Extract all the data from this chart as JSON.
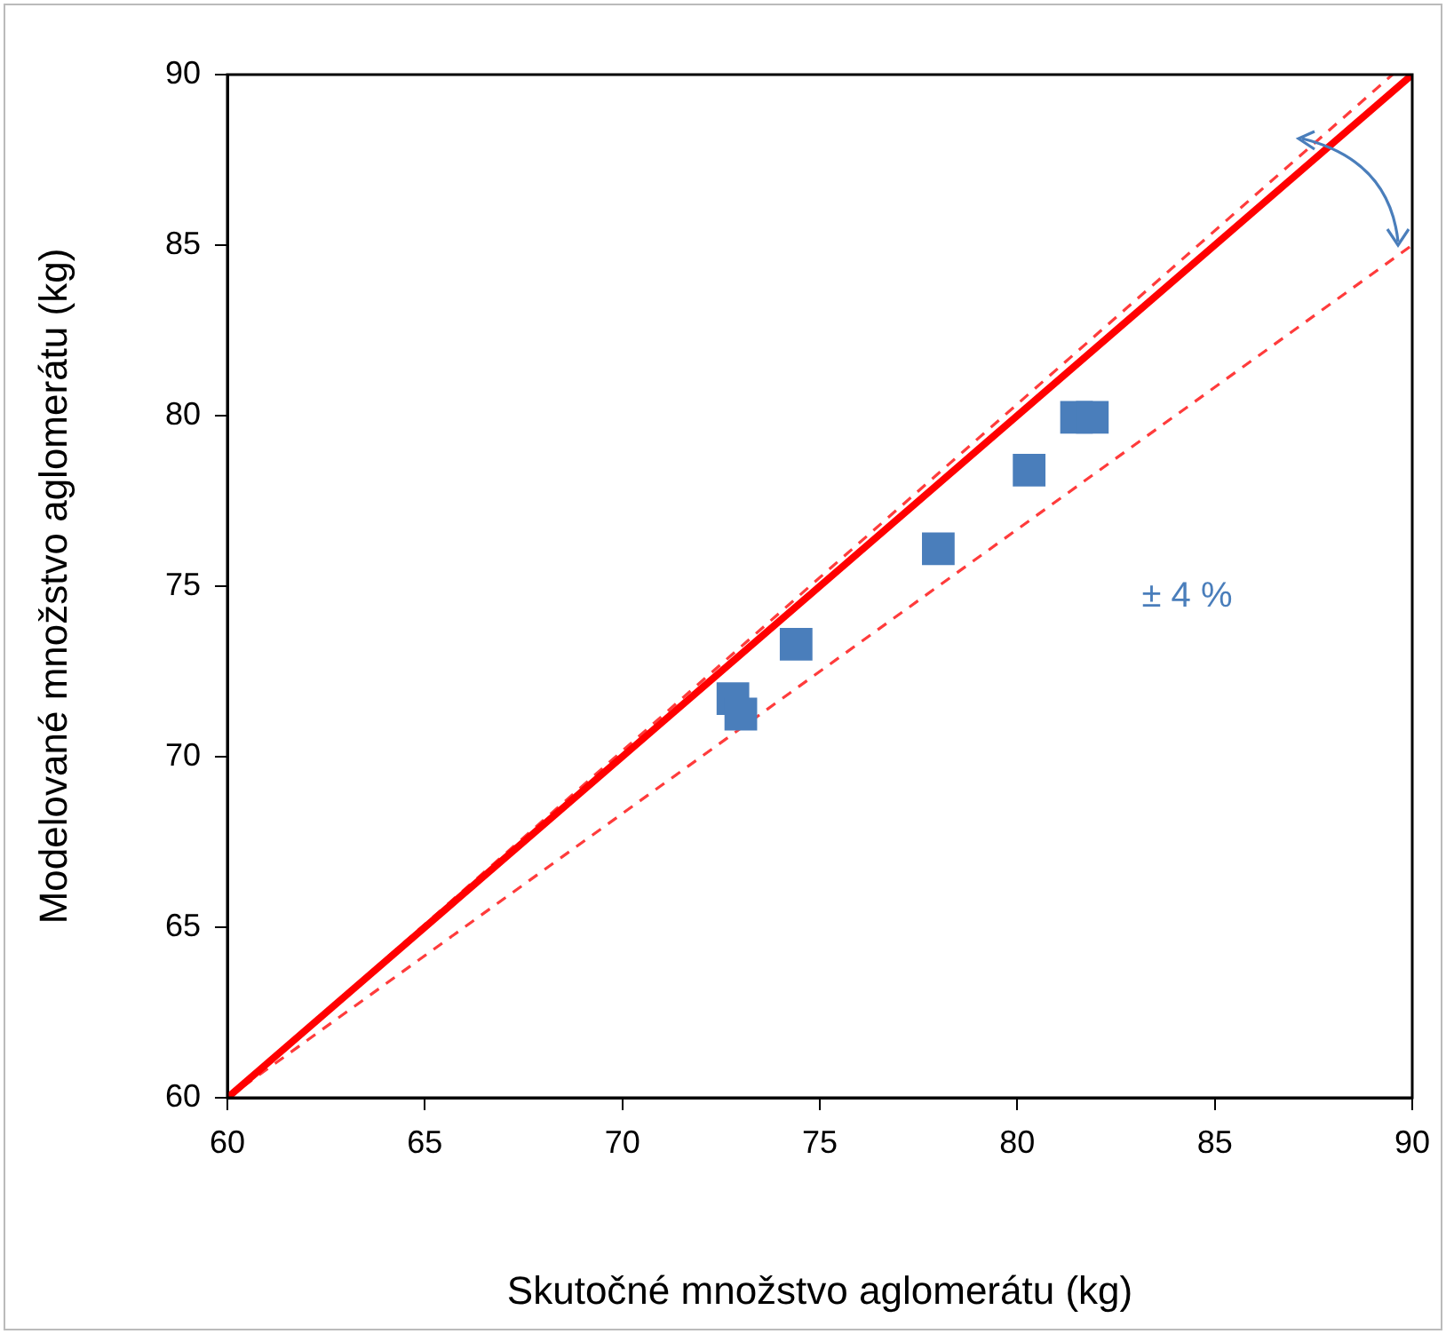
{
  "chart_data": {
    "type": "scatter",
    "xlabel": "Skutočné množstvo aglomerátu (kg)",
    "ylabel": "Modelované množstvo aglomerátu (kg)",
    "xlim": [
      60,
      90
    ],
    "ylim": [
      60,
      90
    ],
    "xticks": [
      60,
      65,
      70,
      75,
      80,
      85,
      90
    ],
    "yticks": [
      60,
      65,
      70,
      75,
      80,
      85,
      90
    ],
    "grid": false,
    "legend": false,
    "marker": "square",
    "series": [
      {
        "color": "#4a7ebb",
        "x": [
          72.8,
          73.0,
          74.4,
          78.0,
          80.3,
          81.5,
          81.9
        ],
        "values": [
          71.7,
          71.25,
          73.3,
          76.1,
          78.4,
          79.95,
          79.95
        ]
      },
      {
        "type": "line",
        "color": "#ff0000",
        "line_style": "solid",
        "marker": "none",
        "x": [
          60,
          90
        ],
        "values": [
          60,
          90
        ]
      },
      {
        "type": "line",
        "color": "#ff3b3b",
        "line_style": "dashed",
        "marker": "none",
        "x": [
          60,
          89.5
        ],
        "values": [
          60,
          90
        ]
      },
      {
        "type": "line",
        "color": "#ff3b3b",
        "line_style": "dashed",
        "marker": "none",
        "x": [
          60,
          90
        ],
        "values": [
          60,
          85
        ]
      }
    ],
    "annotations": [
      "± 4 %"
    ]
  }
}
